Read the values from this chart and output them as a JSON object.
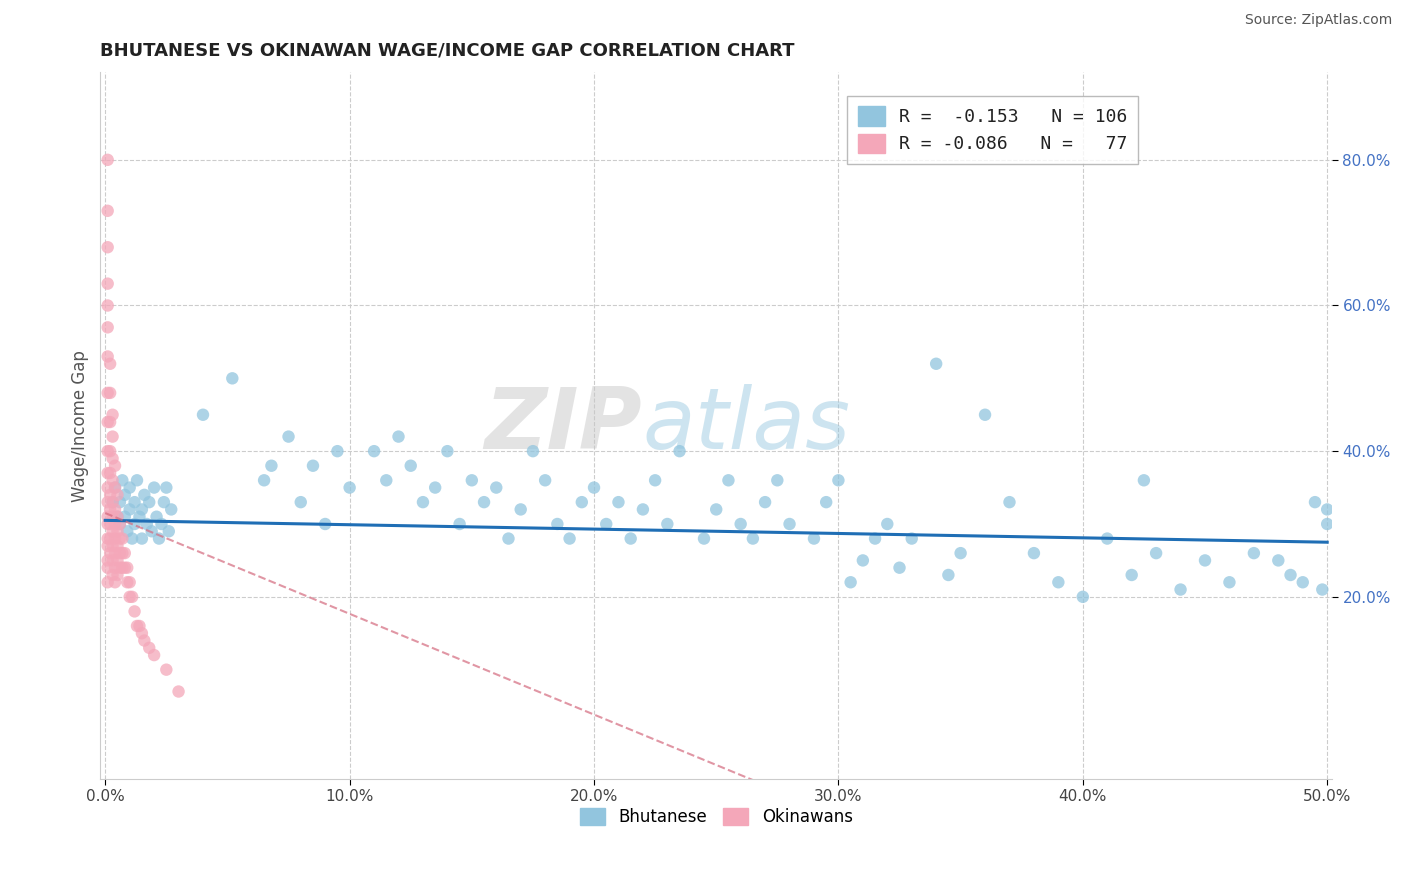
{
  "title": "BHUTANESE VS OKINAWAN WAGE/INCOME GAP CORRELATION CHART",
  "source": "Source: ZipAtlas.com",
  "ylabel": "Wage/Income Gap",
  "xlim": [
    -0.002,
    0.502
  ],
  "ylim": [
    -0.05,
    0.92
  ],
  "xtick_labels": [
    "0.0%",
    "10.0%",
    "20.0%",
    "30.0%",
    "40.0%",
    "50.0%"
  ],
  "xtick_vals": [
    0.0,
    0.1,
    0.2,
    0.3,
    0.4,
    0.5
  ],
  "ytick_labels": [
    "20.0%",
    "40.0%",
    "60.0%",
    "80.0%"
  ],
  "ytick_vals": [
    0.2,
    0.4,
    0.6,
    0.8
  ],
  "blue_color": "#92c5de",
  "pink_color": "#f4a7b9",
  "trend_blue": "#1f6eb5",
  "trend_pink": "#d46a7e",
  "legend_R1": "-0.153",
  "legend_N1": "106",
  "legend_R2": "-0.086",
  "legend_N2": "77",
  "watermark_zip": "ZIP",
  "watermark_atlas": "atlas",
  "watermark_zip_color": "#c8c8c8",
  "watermark_atlas_color": "#92c5de",
  "bhutanese_x": [
    0.003,
    0.004,
    0.005,
    0.006,
    0.006,
    0.007,
    0.008,
    0.008,
    0.009,
    0.01,
    0.01,
    0.011,
    0.012,
    0.012,
    0.013,
    0.014,
    0.015,
    0.015,
    0.016,
    0.017,
    0.018,
    0.019,
    0.02,
    0.021,
    0.022,
    0.023,
    0.024,
    0.025,
    0.026,
    0.027,
    0.04,
    0.052,
    0.065,
    0.068,
    0.075,
    0.08,
    0.085,
    0.09,
    0.095,
    0.1,
    0.11,
    0.115,
    0.12,
    0.125,
    0.13,
    0.135,
    0.14,
    0.145,
    0.15,
    0.155,
    0.16,
    0.165,
    0.17,
    0.175,
    0.18,
    0.185,
    0.19,
    0.195,
    0.2,
    0.205,
    0.21,
    0.215,
    0.22,
    0.225,
    0.23,
    0.235,
    0.245,
    0.25,
    0.255,
    0.26,
    0.265,
    0.27,
    0.275,
    0.28,
    0.29,
    0.295,
    0.3,
    0.305,
    0.31,
    0.315,
    0.32,
    0.325,
    0.33,
    0.34,
    0.345,
    0.35,
    0.36,
    0.37,
    0.38,
    0.39,
    0.4,
    0.41,
    0.42,
    0.425,
    0.43,
    0.44,
    0.45,
    0.46,
    0.47,
    0.48,
    0.485,
    0.49,
    0.495,
    0.498,
    0.5,
    0.5
  ],
  "bhutanese_y": [
    0.33,
    0.35,
    0.31,
    0.3,
    0.33,
    0.36,
    0.31,
    0.34,
    0.29,
    0.32,
    0.35,
    0.28,
    0.3,
    0.33,
    0.36,
    0.31,
    0.28,
    0.32,
    0.34,
    0.3,
    0.33,
    0.29,
    0.35,
    0.31,
    0.28,
    0.3,
    0.33,
    0.35,
    0.29,
    0.32,
    0.45,
    0.5,
    0.36,
    0.38,
    0.42,
    0.33,
    0.38,
    0.3,
    0.4,
    0.35,
    0.4,
    0.36,
    0.42,
    0.38,
    0.33,
    0.35,
    0.4,
    0.3,
    0.36,
    0.33,
    0.35,
    0.28,
    0.32,
    0.4,
    0.36,
    0.3,
    0.28,
    0.33,
    0.35,
    0.3,
    0.33,
    0.28,
    0.32,
    0.36,
    0.3,
    0.4,
    0.28,
    0.32,
    0.36,
    0.3,
    0.28,
    0.33,
    0.36,
    0.3,
    0.28,
    0.33,
    0.36,
    0.22,
    0.25,
    0.28,
    0.3,
    0.24,
    0.28,
    0.52,
    0.23,
    0.26,
    0.45,
    0.33,
    0.26,
    0.22,
    0.2,
    0.28,
    0.23,
    0.36,
    0.26,
    0.21,
    0.25,
    0.22,
    0.26,
    0.25,
    0.23,
    0.22,
    0.33,
    0.21,
    0.32,
    0.3
  ],
  "okinawan_x": [
    0.001,
    0.001,
    0.001,
    0.001,
    0.001,
    0.001,
    0.001,
    0.001,
    0.001,
    0.001,
    0.001,
    0.001,
    0.001,
    0.001,
    0.001,
    0.001,
    0.001,
    0.001,
    0.001,
    0.001,
    0.002,
    0.002,
    0.002,
    0.002,
    0.002,
    0.002,
    0.002,
    0.002,
    0.002,
    0.002,
    0.003,
    0.003,
    0.003,
    0.003,
    0.003,
    0.003,
    0.003,
    0.003,
    0.003,
    0.003,
    0.004,
    0.004,
    0.004,
    0.004,
    0.004,
    0.004,
    0.004,
    0.004,
    0.005,
    0.005,
    0.005,
    0.005,
    0.005,
    0.005,
    0.006,
    0.006,
    0.006,
    0.006,
    0.007,
    0.007,
    0.007,
    0.008,
    0.008,
    0.009,
    0.009,
    0.01,
    0.01,
    0.011,
    0.012,
    0.013,
    0.014,
    0.015,
    0.016,
    0.018,
    0.02,
    0.025,
    0.03
  ],
  "okinawan_y": [
    0.8,
    0.73,
    0.68,
    0.63,
    0.6,
    0.57,
    0.53,
    0.48,
    0.44,
    0.4,
    0.37,
    0.35,
    0.33,
    0.31,
    0.3,
    0.28,
    0.27,
    0.25,
    0.24,
    0.22,
    0.52,
    0.48,
    0.44,
    0.4,
    0.37,
    0.34,
    0.32,
    0.3,
    0.28,
    0.26,
    0.45,
    0.42,
    0.39,
    0.36,
    0.33,
    0.31,
    0.29,
    0.27,
    0.25,
    0.23,
    0.38,
    0.35,
    0.32,
    0.3,
    0.28,
    0.26,
    0.24,
    0.22,
    0.34,
    0.31,
    0.29,
    0.27,
    0.25,
    0.23,
    0.3,
    0.28,
    0.26,
    0.24,
    0.28,
    0.26,
    0.24,
    0.26,
    0.24,
    0.24,
    0.22,
    0.22,
    0.2,
    0.2,
    0.18,
    0.16,
    0.16,
    0.15,
    0.14,
    0.13,
    0.12,
    0.1,
    0.07
  ]
}
